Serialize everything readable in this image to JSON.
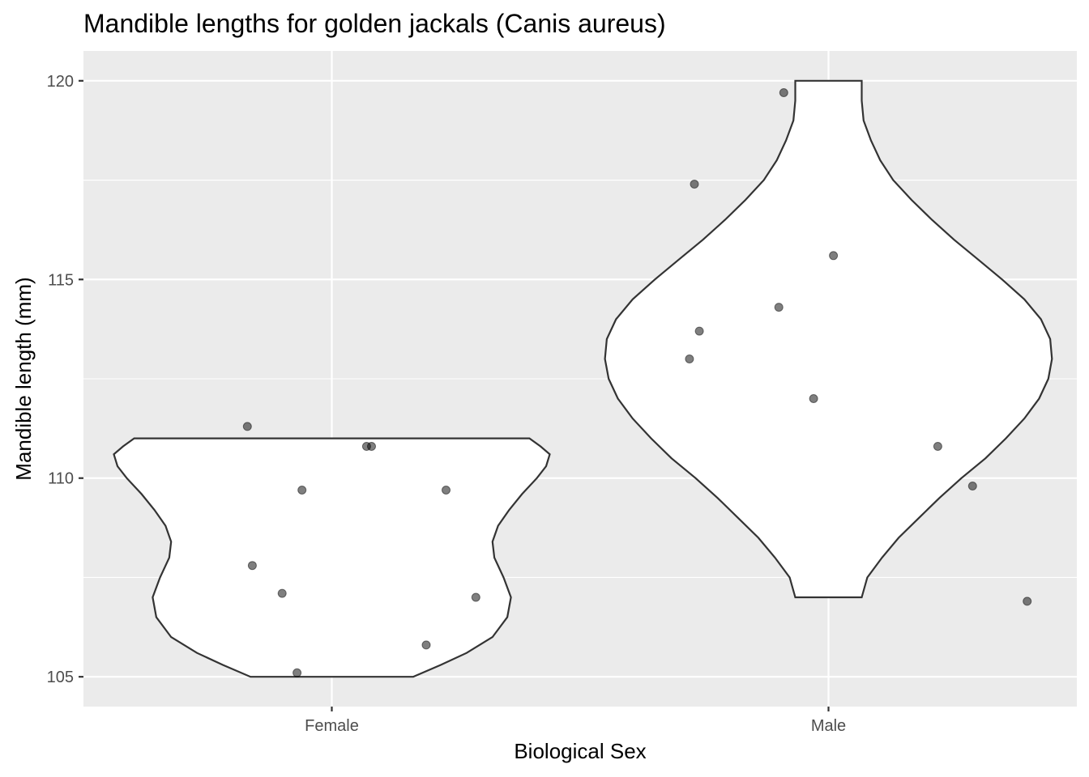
{
  "chart_data": {
    "type": "violin",
    "title": "Mandible lengths for golden jackals (Canis aureus)",
    "xlabel": "Biological Sex",
    "ylabel": "Mandible length (mm)",
    "categories": [
      "Female",
      "Male"
    ],
    "ylim": [
      104.25,
      120.75
    ],
    "yticks": [
      105,
      110,
      115,
      120
    ],
    "y_minor_ticks": [
      107.5,
      112.5,
      117.5
    ],
    "grid": true,
    "violins": [
      {
        "category": "Female",
        "y_min": 105,
        "y_max": 111,
        "profile": [
          [
            105.0,
            0.44
          ],
          [
            105.3,
            0.59
          ],
          [
            105.6,
            0.73
          ],
          [
            106.0,
            0.87
          ],
          [
            106.5,
            0.95
          ],
          [
            107.0,
            0.97
          ],
          [
            107.5,
            0.93
          ],
          [
            108.0,
            0.88
          ],
          [
            108.4,
            0.87
          ],
          [
            108.8,
            0.9
          ],
          [
            109.2,
            0.96
          ],
          [
            109.6,
            1.03
          ],
          [
            110.0,
            1.11
          ],
          [
            110.3,
            1.16
          ],
          [
            110.6,
            1.18
          ],
          [
            110.8,
            1.13
          ],
          [
            111.0,
            1.07
          ]
        ]
      },
      {
        "category": "Male",
        "y_min": 107,
        "y_max": 120,
        "profile": [
          [
            107.0,
            0.18
          ],
          [
            107.5,
            0.21
          ],
          [
            108.0,
            0.29
          ],
          [
            108.5,
            0.38
          ],
          [
            109.0,
            0.49
          ],
          [
            109.5,
            0.6
          ],
          [
            110.0,
            0.72
          ],
          [
            110.5,
            0.85
          ],
          [
            111.0,
            0.96
          ],
          [
            111.5,
            1.06
          ],
          [
            112.0,
            1.14
          ],
          [
            112.5,
            1.19
          ],
          [
            113.0,
            1.21
          ],
          [
            113.5,
            1.2
          ],
          [
            114.0,
            1.15
          ],
          [
            114.5,
            1.06
          ],
          [
            115.0,
            0.94
          ],
          [
            115.5,
            0.81
          ],
          [
            116.0,
            0.68
          ],
          [
            116.5,
            0.56
          ],
          [
            117.0,
            0.45
          ],
          [
            117.5,
            0.35
          ],
          [
            118.0,
            0.28
          ],
          [
            118.5,
            0.23
          ],
          [
            119.0,
            0.19
          ],
          [
            119.5,
            0.18
          ],
          [
            120.0,
            0.18
          ]
        ]
      }
    ],
    "points": [
      {
        "category": "Female",
        "x_jitter": -0.17,
        "y": 111.3
      },
      {
        "category": "Female",
        "x_jitter": 0.07,
        "y": 110.8
      },
      {
        "category": "Female",
        "x_jitter": 0.08,
        "y": 110.8
      },
      {
        "category": "Female",
        "x_jitter": -0.06,
        "y": 109.7
      },
      {
        "category": "Female",
        "x_jitter": 0.23,
        "y": 109.7
      },
      {
        "category": "Female",
        "x_jitter": -0.16,
        "y": 107.8
      },
      {
        "category": "Female",
        "x_jitter": -0.1,
        "y": 107.1
      },
      {
        "category": "Female",
        "x_jitter": 0.29,
        "y": 107.0
      },
      {
        "category": "Female",
        "x_jitter": 0.19,
        "y": 105.8
      },
      {
        "category": "Female",
        "x_jitter": -0.07,
        "y": 105.1
      },
      {
        "category": "Male",
        "x_jitter": -0.09,
        "y": 119.7
      },
      {
        "category": "Male",
        "x_jitter": -0.27,
        "y": 117.4
      },
      {
        "category": "Male",
        "x_jitter": 0.01,
        "y": 115.6
      },
      {
        "category": "Male",
        "x_jitter": -0.1,
        "y": 114.3
      },
      {
        "category": "Male",
        "x_jitter": -0.26,
        "y": 113.7
      },
      {
        "category": "Male",
        "x_jitter": -0.28,
        "y": 113.0
      },
      {
        "category": "Male",
        "x_jitter": -0.03,
        "y": 112.0
      },
      {
        "category": "Male",
        "x_jitter": 0.22,
        "y": 110.8
      },
      {
        "category": "Male",
        "x_jitter": 0.29,
        "y": 109.8
      },
      {
        "category": "Male",
        "x_jitter": 0.4,
        "y": 106.9
      }
    ]
  }
}
